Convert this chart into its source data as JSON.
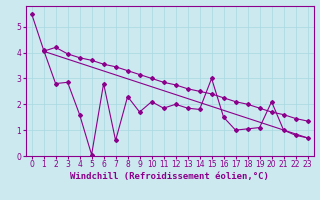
{
  "xlabel": "Windchill (Refroidissement éolien,°C)",
  "background_color": "#cce9f0",
  "line_color": "#8b008b",
  "xlim": [
    -0.5,
    23.5
  ],
  "ylim": [
    0,
    5.8
  ],
  "yticks": [
    0,
    1,
    2,
    3,
    4,
    5
  ],
  "xticks": [
    0,
    1,
    2,
    3,
    4,
    5,
    6,
    7,
    8,
    9,
    10,
    11,
    12,
    13,
    14,
    15,
    16,
    17,
    18,
    19,
    20,
    21,
    22,
    23
  ],
  "line1_x": [
    0,
    1,
    2,
    3,
    4,
    5,
    6,
    7,
    8,
    9,
    10,
    11,
    12,
    13,
    14,
    15,
    16,
    17,
    18,
    19,
    20,
    21,
    22,
    23
  ],
  "line1_y": [
    5.5,
    4.1,
    2.8,
    2.85,
    1.6,
    0.05,
    2.8,
    0.6,
    2.3,
    1.7,
    2.1,
    1.85,
    2.0,
    1.85,
    1.8,
    3.0,
    1.5,
    1.0,
    1.05,
    1.1,
    2.1,
    1.0,
    0.8,
    0.7
  ],
  "line2_x": [
    1,
    2,
    3,
    4,
    5,
    6,
    7,
    8,
    9,
    10,
    11,
    12,
    13,
    14,
    15,
    16,
    17,
    18,
    19,
    20,
    21,
    22,
    23
  ],
  "line2_y": [
    4.05,
    4.2,
    3.95,
    3.8,
    3.7,
    3.55,
    3.45,
    3.3,
    3.15,
    3.0,
    2.85,
    2.75,
    2.6,
    2.5,
    2.4,
    2.25,
    2.1,
    2.0,
    1.85,
    1.7,
    1.6,
    1.45,
    1.35
  ],
  "line3_x": [
    1,
    23
  ],
  "line3_y": [
    4.05,
    0.7
  ],
  "grid_color": "#a8d8e0",
  "tick_fontsize": 5.5,
  "xlabel_fontsize": 6.5
}
